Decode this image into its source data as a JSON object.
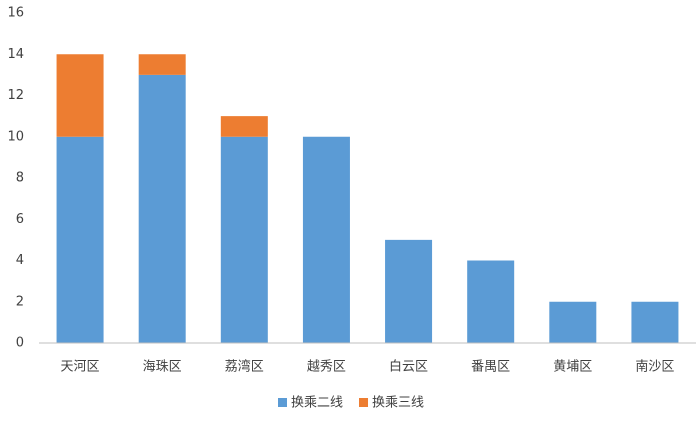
{
  "chart_data": {
    "type": "stacked_bar",
    "categories": [
      "天河区",
      "海珠区",
      "荔湾区",
      "越秀区",
      "白云区",
      "番禺区",
      "黄埔区",
      "南沙区"
    ],
    "series": [
      {
        "name": "换乘二线",
        "color": "#5b9bd5",
        "values": [
          10,
          13,
          10,
          10,
          5,
          4,
          2,
          2
        ]
      },
      {
        "name": "换乘三线",
        "color": "#ed7d31",
        "values": [
          4,
          1,
          1,
          0,
          0,
          0,
          0,
          0
        ]
      }
    ],
    "ylim": [
      0,
      16
    ],
    "yticks": [
      0,
      2,
      4,
      6,
      8,
      10,
      12,
      14,
      16
    ],
    "grid": false,
    "legend": "bottom"
  }
}
